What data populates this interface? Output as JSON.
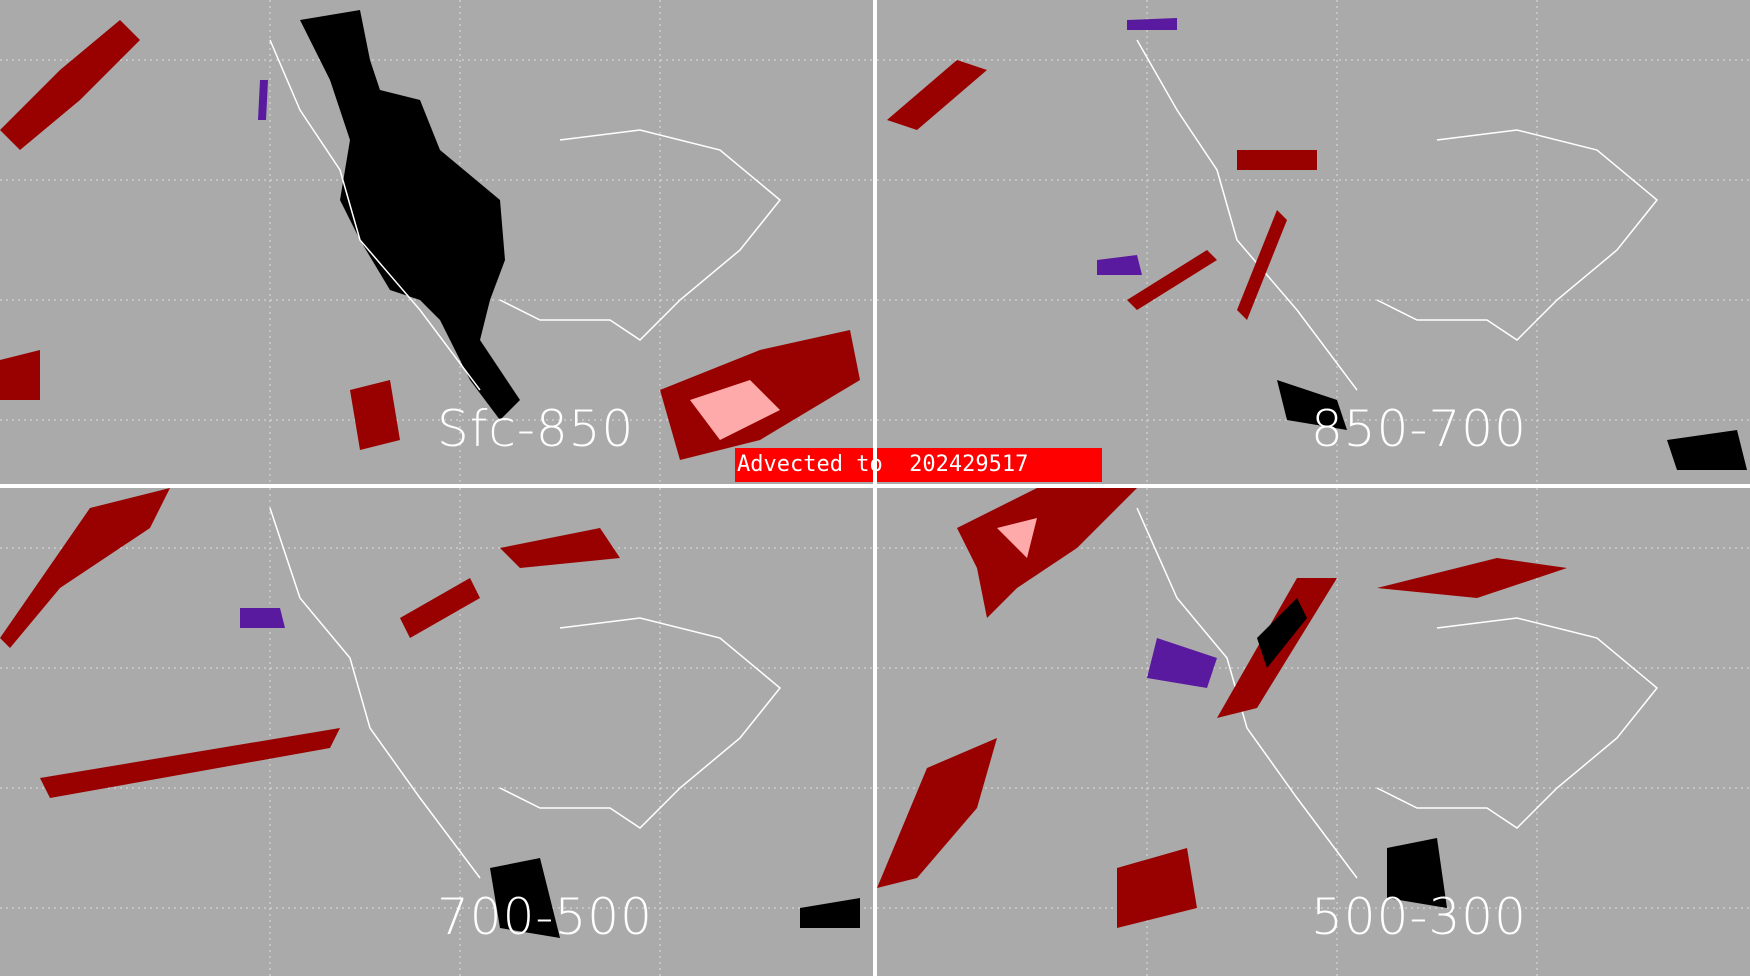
{
  "banner": {
    "text": "Advected to  202429517"
  },
  "panels": [
    {
      "label": "Sfc-850"
    },
    {
      "label": "850-700"
    },
    {
      "label": "700-500"
    },
    {
      "label": "500-300"
    }
  ],
  "colors": {
    "background": "#aaaaaa",
    "dark_red": "#990000",
    "pink": "#ffaaaa",
    "purple": "#5a1aa0",
    "black": "#000000",
    "banner": "#ff0000",
    "outline": "#ffffff"
  }
}
